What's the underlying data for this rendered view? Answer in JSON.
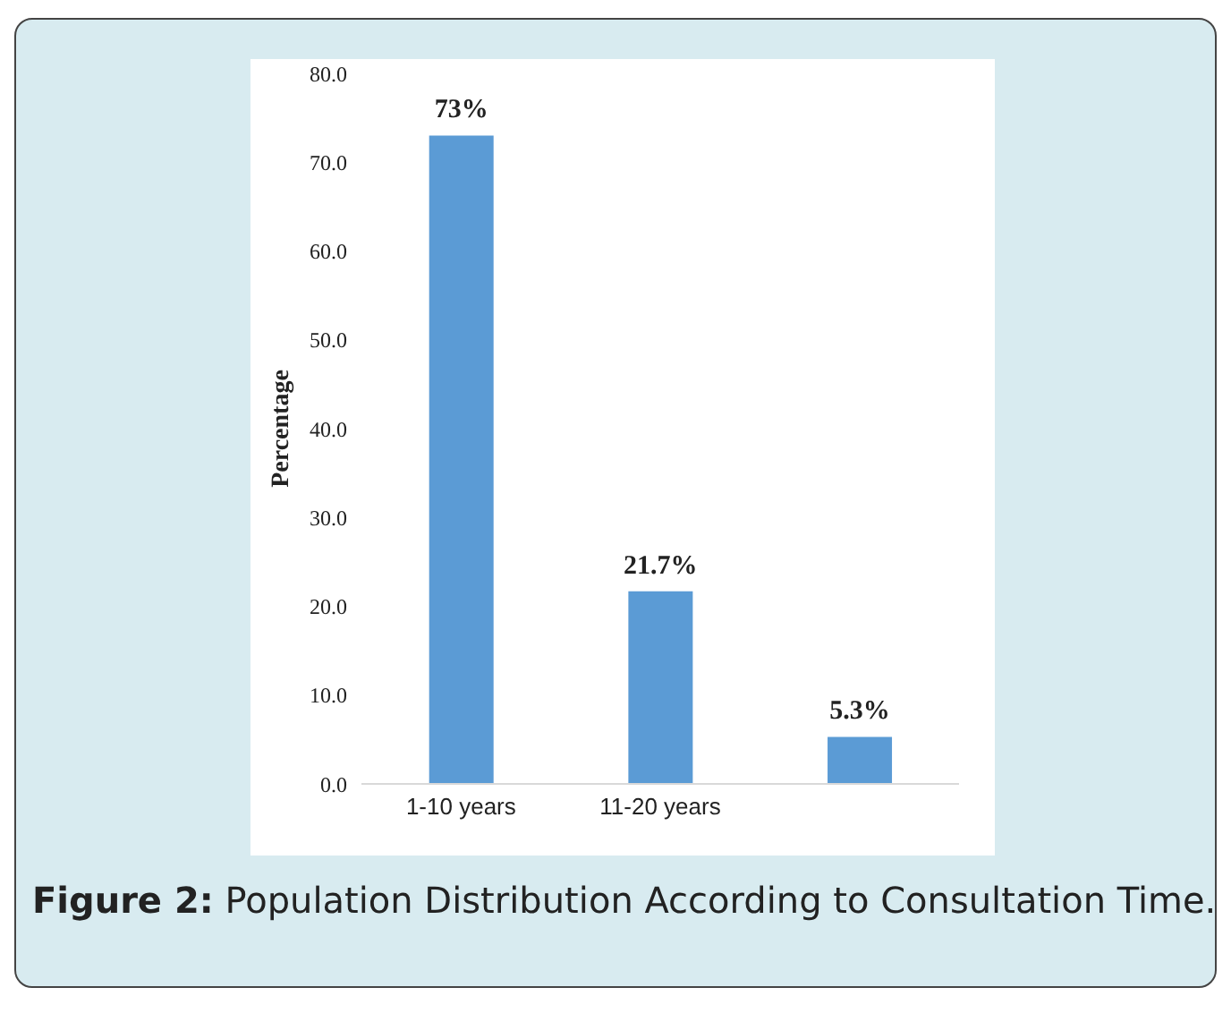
{
  "chart_data": {
    "type": "bar",
    "ylabel": "Percentage",
    "categories": [
      "1-10 years",
      "11-20 years",
      null
    ],
    "values": [
      73,
      21.7,
      5.3
    ],
    "color": "#5b9bd5",
    "value_labels": [
      "73%",
      "21.7%",
      "5.3%"
    ],
    "ylim": [
      0,
      80
    ],
    "yticks": [
      {
        "value": 0,
        "label": "0.0"
      },
      {
        "value": 10,
        "label": "10.0"
      },
      {
        "value": 20,
        "label": "20.0"
      },
      {
        "value": 30,
        "label": "30.0"
      },
      {
        "value": 40,
        "label": "40.0"
      },
      {
        "value": 50,
        "label": "50.0"
      },
      {
        "value": 60,
        "label": "60.0"
      },
      {
        "value": 70,
        "label": "70.0"
      },
      {
        "value": 80,
        "label": "80.0"
      }
    ],
    "grid": false,
    "legend": false,
    "annotations": [
      "Figure 2: Population Distribution According to Consultation Time."
    ]
  }
}
